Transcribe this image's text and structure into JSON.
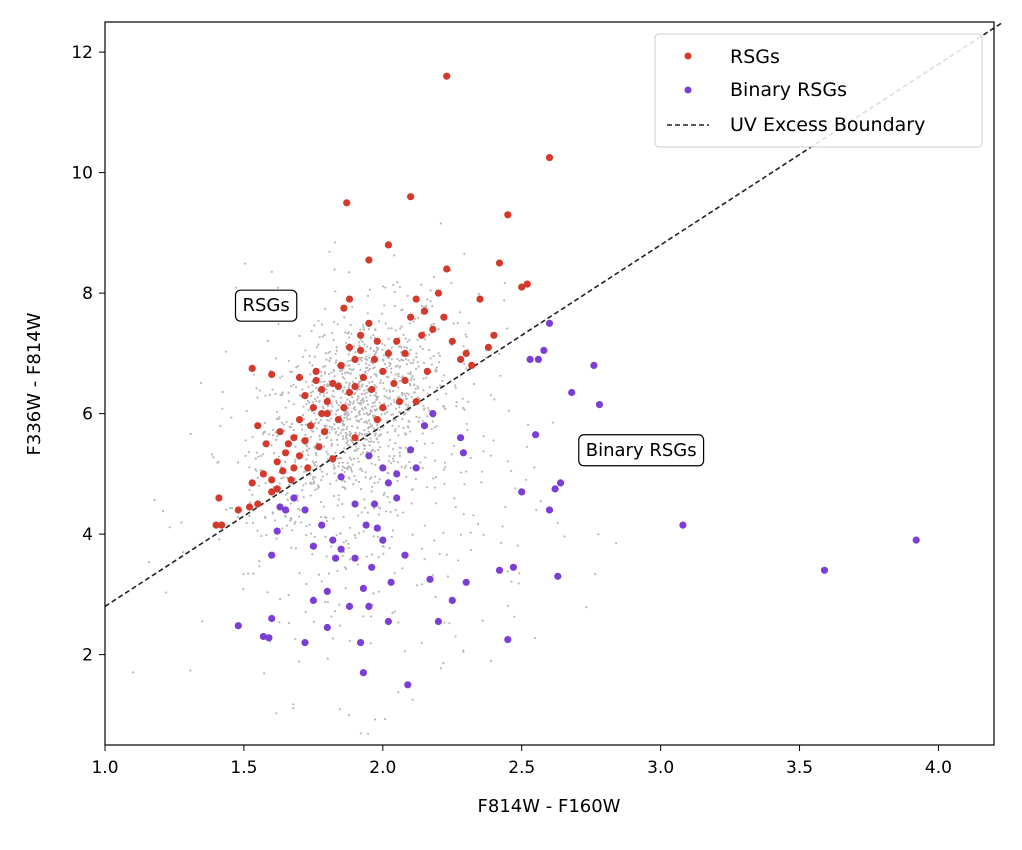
{
  "chart_data": {
    "type": "scatter",
    "xlabel": "F814W - F160W",
    "ylabel": "F336W - F814W",
    "xlim": [
      1.0,
      4.2
    ],
    "ylim": [
      0.5,
      12.5
    ],
    "x_ticks": [
      "1.0",
      "1.5",
      "2.0",
      "2.5",
      "3.0",
      "3.5",
      "4.0"
    ],
    "y_ticks": [
      "2",
      "4",
      "6",
      "8",
      "10",
      "12"
    ],
    "grid": false,
    "legend": {
      "position": "top-right",
      "entries": [
        "RSGs",
        "Binary RSGs",
        "UV Excess Boundary"
      ]
    },
    "colors": {
      "rsg": "#d43a2c",
      "binary": "#7b3fd6",
      "background": "#b8b8b8",
      "boundary": "#222222"
    },
    "boundary_line": {
      "name": "UV Excess Boundary",
      "slope": 3.0,
      "intercept": -0.2
    },
    "annotations": [
      {
        "text": "RSGs",
        "x": 1.58,
        "y": 7.8
      },
      {
        "text": "Binary RSGs",
        "x": 2.93,
        "y": 5.4
      }
    ],
    "series": [
      {
        "name": "RSGs",
        "points": [
          [
            1.4,
            4.15
          ],
          [
            1.42,
            4.15
          ],
          [
            1.41,
            4.6
          ],
          [
            1.48,
            4.4
          ],
          [
            1.52,
            4.45
          ],
          [
            1.55,
            4.5
          ],
          [
            1.53,
            4.85
          ],
          [
            1.57,
            5.0
          ],
          [
            1.6,
            4.7
          ],
          [
            1.6,
            4.9
          ],
          [
            1.62,
            5.2
          ],
          [
            1.65,
            5.35
          ],
          [
            1.64,
            5.05
          ],
          [
            1.58,
            5.5
          ],
          [
            1.55,
            5.8
          ],
          [
            1.6,
            6.65
          ],
          [
            1.53,
            6.75
          ],
          [
            1.63,
            5.7
          ],
          [
            1.66,
            5.5
          ],
          [
            1.68,
            5.1
          ],
          [
            1.7,
            5.9
          ],
          [
            1.72,
            6.3
          ],
          [
            1.7,
            6.6
          ],
          [
            1.75,
            6.1
          ],
          [
            1.78,
            6.4
          ],
          [
            1.76,
            6.7
          ],
          [
            1.8,
            6.2
          ],
          [
            1.82,
            6.5
          ],
          [
            1.8,
            6.0
          ],
          [
            1.74,
            5.8
          ],
          [
            1.68,
            5.6
          ],
          [
            1.72,
            5.55
          ],
          [
            1.77,
            5.45
          ],
          [
            1.79,
            5.7
          ],
          [
            1.84,
            5.9
          ],
          [
            1.86,
            6.1
          ],
          [
            1.88,
            6.35
          ],
          [
            1.85,
            6.8
          ],
          [
            1.88,
            7.1
          ],
          [
            1.92,
            7.3
          ],
          [
            1.95,
            7.5
          ],
          [
            1.9,
            6.9
          ],
          [
            1.93,
            6.6
          ],
          [
            1.96,
            6.4
          ],
          [
            2.0,
            6.7
          ],
          [
            2.02,
            7.0
          ],
          [
            2.05,
            7.2
          ],
          [
            2.08,
            7.0
          ],
          [
            2.1,
            7.6
          ],
          [
            2.12,
            7.9
          ],
          [
            2.15,
            7.7
          ],
          [
            2.2,
            8.0
          ],
          [
            2.22,
            7.6
          ],
          [
            2.25,
            7.2
          ],
          [
            2.3,
            7.0
          ],
          [
            2.32,
            6.8
          ],
          [
            2.38,
            7.1
          ],
          [
            2.4,
            7.3
          ],
          [
            2.35,
            7.9
          ],
          [
            2.42,
            8.5
          ],
          [
            2.5,
            8.1
          ],
          [
            2.52,
            8.15
          ],
          [
            2.45,
            9.3
          ],
          [
            2.6,
            10.25
          ],
          [
            2.23,
            11.6
          ],
          [
            2.1,
            9.6
          ],
          [
            1.87,
            9.5
          ],
          [
            2.02,
            8.8
          ],
          [
            1.95,
            8.55
          ],
          [
            2.23,
            8.4
          ],
          [
            1.88,
            7.9
          ],
          [
            1.86,
            7.75
          ],
          [
            1.98,
            7.2
          ],
          [
            2.04,
            6.5
          ],
          [
            2.08,
            6.55
          ],
          [
            2.12,
            6.2
          ],
          [
            2.0,
            6.1
          ],
          [
            1.97,
            6.9
          ],
          [
            1.84,
            6.45
          ],
          [
            1.78,
            6.0
          ],
          [
            1.7,
            5.3
          ],
          [
            1.73,
            5.1
          ],
          [
            1.67,
            4.9
          ],
          [
            1.62,
            4.75
          ],
          [
            1.82,
            5.25
          ],
          [
            1.9,
            5.6
          ],
          [
            1.98,
            5.9
          ],
          [
            2.06,
            6.2
          ],
          [
            2.16,
            6.7
          ],
          [
            2.28,
            6.9
          ],
          [
            1.76,
            6.55
          ],
          [
            1.9,
            6.45
          ],
          [
            2.14,
            7.3
          ],
          [
            1.92,
            7.05
          ],
          [
            2.18,
            7.4
          ]
        ]
      },
      {
        "name": "Binary RSGs",
        "points": [
          [
            1.48,
            2.48
          ],
          [
            1.57,
            2.3
          ],
          [
            1.59,
            2.28
          ],
          [
            1.6,
            2.6
          ],
          [
            1.6,
            3.65
          ],
          [
            1.62,
            4.05
          ],
          [
            1.63,
            4.45
          ],
          [
            1.65,
            4.4
          ],
          [
            1.68,
            4.6
          ],
          [
            1.72,
            4.4
          ],
          [
            1.72,
            2.2
          ],
          [
            1.75,
            3.8
          ],
          [
            1.75,
            2.9
          ],
          [
            1.78,
            4.15
          ],
          [
            1.8,
            2.45
          ],
          [
            1.8,
            3.05
          ],
          [
            1.83,
            3.6
          ],
          [
            1.85,
            3.75
          ],
          [
            1.88,
            2.8
          ],
          [
            1.9,
            3.6
          ],
          [
            1.92,
            2.2
          ],
          [
            1.93,
            1.7
          ],
          [
            1.93,
            3.1
          ],
          [
            1.94,
            4.15
          ],
          [
            1.95,
            2.8
          ],
          [
            1.96,
            3.45
          ],
          [
            1.97,
            4.5
          ],
          [
            1.98,
            4.1
          ],
          [
            2.0,
            3.9
          ],
          [
            2.02,
            4.85
          ],
          [
            2.02,
            2.55
          ],
          [
            2.03,
            3.2
          ],
          [
            2.05,
            5.0
          ],
          [
            2.05,
            4.6
          ],
          [
            2.08,
            3.65
          ],
          [
            2.09,
            1.5
          ],
          [
            2.1,
            5.4
          ],
          [
            2.12,
            5.1
          ],
          [
            2.15,
            5.8
          ],
          [
            2.17,
            3.25
          ],
          [
            2.18,
            6.0
          ],
          [
            2.2,
            2.55
          ],
          [
            2.25,
            2.9
          ],
          [
            2.28,
            5.6
          ],
          [
            2.29,
            5.35
          ],
          [
            2.3,
            3.2
          ],
          [
            2.42,
            3.4
          ],
          [
            2.45,
            2.25
          ],
          [
            2.47,
            3.45
          ],
          [
            2.5,
            4.7
          ],
          [
            2.53,
            6.9
          ],
          [
            2.55,
            5.65
          ],
          [
            2.56,
            6.9
          ],
          [
            2.58,
            7.05
          ],
          [
            2.6,
            4.4
          ],
          [
            2.6,
            7.5
          ],
          [
            2.62,
            4.75
          ],
          [
            2.63,
            3.3
          ],
          [
            2.64,
            4.85
          ],
          [
            2.68,
            6.35
          ],
          [
            2.76,
            6.8
          ],
          [
            2.78,
            6.15
          ],
          [
            3.08,
            4.15
          ],
          [
            3.59,
            3.4
          ],
          [
            3.92,
            3.9
          ],
          [
            1.85,
            4.95
          ],
          [
            1.95,
            5.3
          ],
          [
            2.0,
            5.1
          ],
          [
            1.9,
            4.5
          ],
          [
            1.82,
            3.9
          ]
        ]
      }
    ]
  }
}
